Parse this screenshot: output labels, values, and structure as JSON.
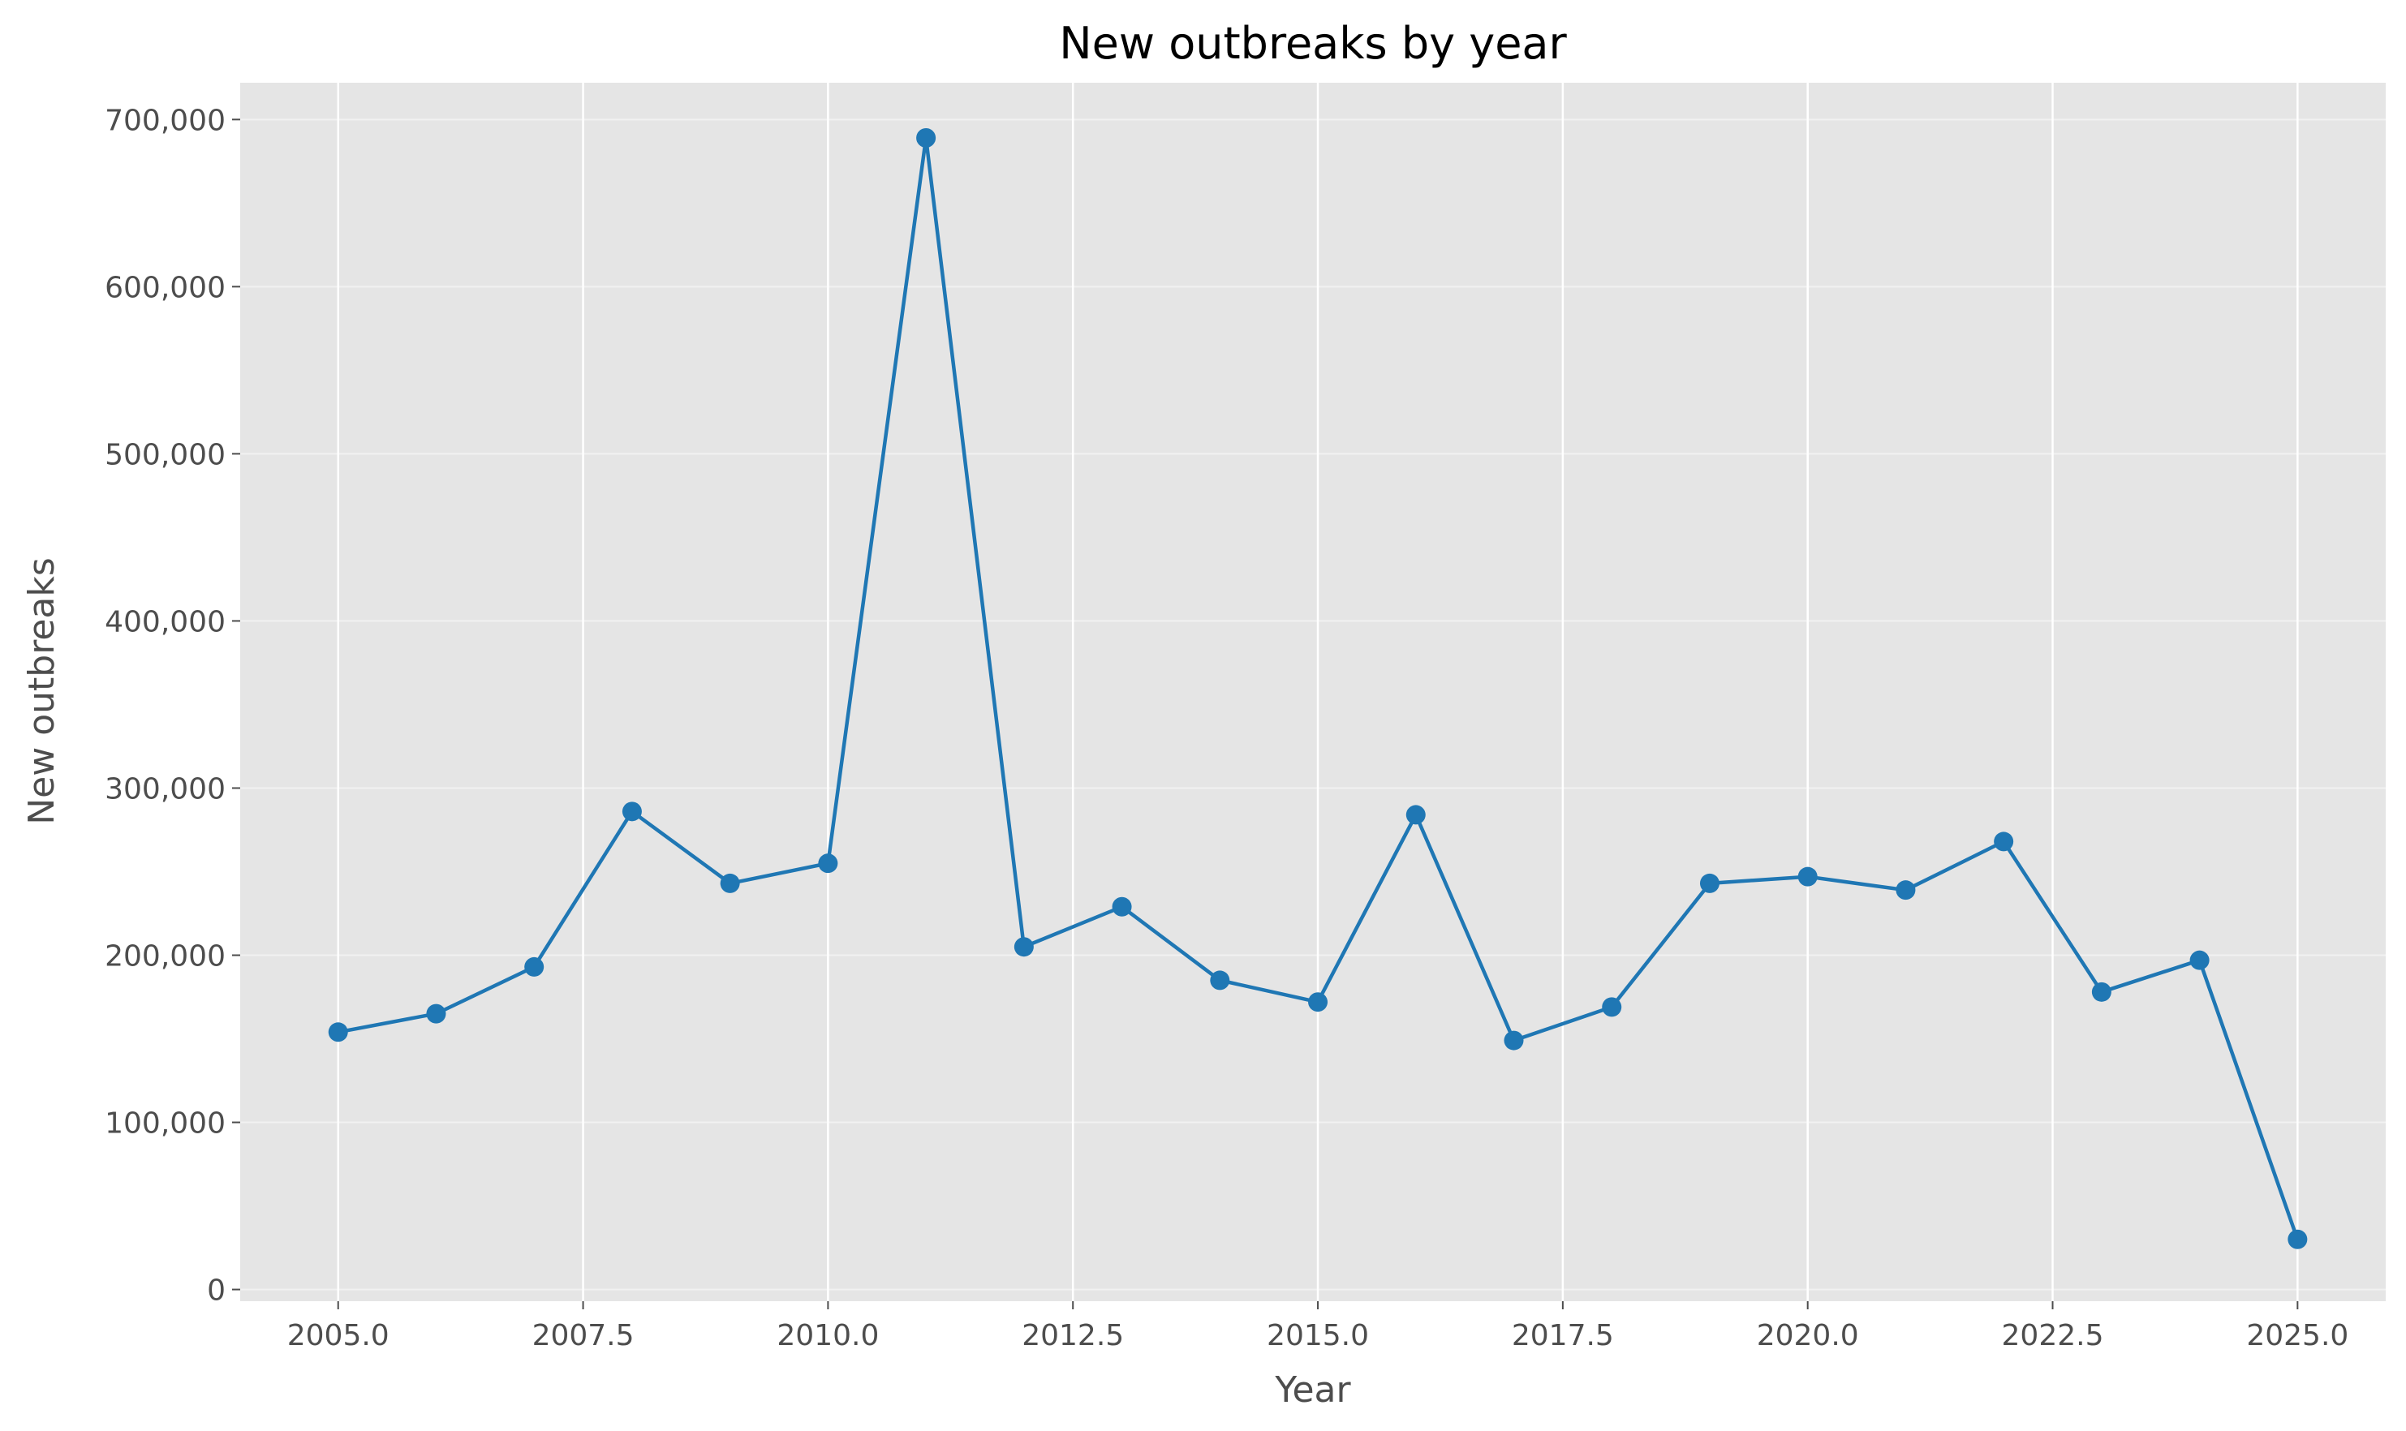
{
  "chart_data": {
    "type": "line",
    "title": "New outbreaks by year",
    "xlabel": "Year",
    "ylabel": "New outbreaks",
    "xlim": [
      2004.0,
      2025.9
    ],
    "ylim": [
      -7000,
      722000
    ],
    "grid": true,
    "x_ticks": [
      2005.0,
      2007.5,
      2010.0,
      2012.5,
      2015.0,
      2017.5,
      2020.0,
      2022.5,
      2025.0
    ],
    "x_tick_labels": [
      "2005.0",
      "2007.5",
      "2010.0",
      "2012.5",
      "2015.0",
      "2017.5",
      "2020.0",
      "2022.5",
      "2025.0"
    ],
    "y_ticks": [
      0,
      100000,
      200000,
      300000,
      400000,
      500000,
      600000,
      700000
    ],
    "y_tick_labels": [
      "0",
      "100,000",
      "200,000",
      "300,000",
      "400,000",
      "500,000",
      "600,000",
      "700,000"
    ],
    "colors": {
      "series": "#1f77b4",
      "plot_bg": "#e5e5e5",
      "grid": "#ffffff"
    },
    "series": [
      {
        "x": [
          2005,
          2006,
          2007,
          2008,
          2009,
          2010,
          2011,
          2012,
          2013,
          2014,
          2015,
          2016,
          2017,
          2018,
          2019,
          2020,
          2021,
          2022,
          2023,
          2024,
          2025
        ],
        "y": [
          154000,
          165000,
          193000,
          286000,
          243000,
          255000,
          689000,
          205000,
          229000,
          185000,
          172000,
          284000,
          149000,
          169000,
          243000,
          247000,
          239000,
          268000,
          178000,
          197000,
          30000
        ]
      }
    ]
  }
}
